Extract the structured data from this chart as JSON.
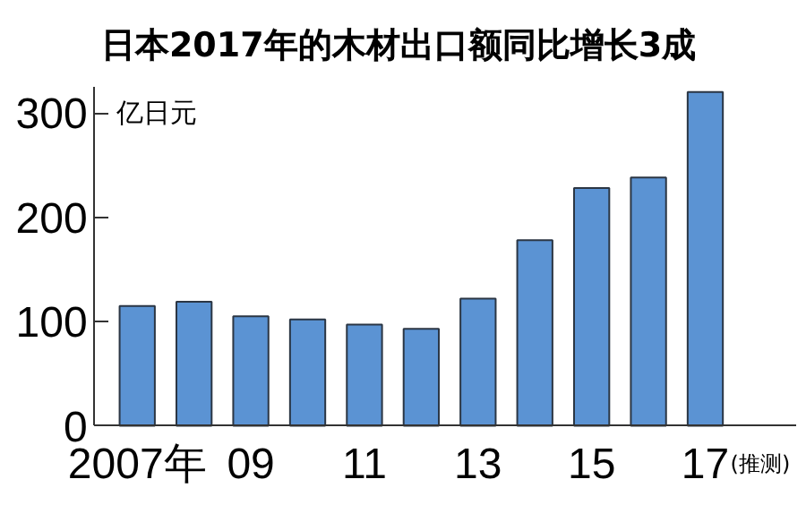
{
  "chart_data": {
    "type": "bar",
    "title": "日本2017年的木材出口额同比增长3成",
    "ylabel": "亿日元",
    "categories": [
      "2007年",
      null,
      "09",
      null,
      "11",
      null,
      "13",
      null,
      "15",
      null,
      "17"
    ],
    "values": [
      115,
      119,
      105,
      102,
      97,
      93,
      122,
      178,
      228,
      238,
      320
    ],
    "color": "#5b93d3",
    "ylim": [
      0,
      325
    ],
    "yticks": [
      0,
      100,
      200,
      300
    ],
    "annotations": [
      "(推测)"
    ]
  }
}
